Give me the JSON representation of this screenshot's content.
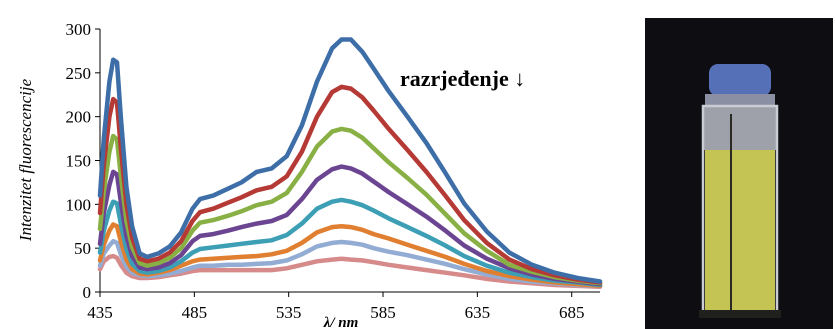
{
  "chart_data": {
    "type": "line",
    "title": "",
    "xlabel": "λ/ nm",
    "ylabel": "Intenzitet fluorescencije",
    "xlim": [
      435,
      700
    ],
    "ylim": [
      0,
      300
    ],
    "x_ticks": [
      435,
      485,
      535,
      585,
      635,
      685
    ],
    "y_ticks": [
      0,
      50,
      100,
      150,
      200,
      250,
      300
    ],
    "grid": false,
    "legend": "none",
    "annotation": "razrjeđenje ↓",
    "x": [
      435,
      437,
      440,
      442,
      444,
      446,
      449,
      452,
      456,
      460,
      466,
      472,
      478,
      484,
      488,
      495,
      503,
      510,
      518,
      526,
      534,
      542,
      550,
      558,
      563,
      568,
      574,
      580,
      588,
      598,
      608,
      618,
      628,
      640,
      652,
      664,
      676,
      688,
      700
    ],
    "series": [
      {
        "color": "#3d6ea8",
        "values": [
          110,
          175,
          240,
          265,
          262,
          200,
          120,
          75,
          44,
          40,
          44,
          52,
          68,
          95,
          106,
          110,
          118,
          125,
          137,
          141,
          155,
          190,
          240,
          278,
          288,
          288,
          274,
          255,
          229,
          200,
          170,
          136,
          101,
          69,
          45,
          31,
          22,
          16,
          12
        ]
      },
      {
        "color": "#b53a35",
        "values": [
          90,
          145,
          200,
          220,
          216,
          165,
          100,
          62,
          38,
          35,
          38,
          45,
          58,
          81,
          91,
          95,
          102,
          108,
          116,
          120,
          132,
          160,
          200,
          228,
          234,
          232,
          222,
          207,
          186,
          162,
          137,
          110,
          82,
          56,
          37,
          26,
          19,
          14,
          11
        ]
      },
      {
        "color": "#88b044",
        "values": [
          72,
          115,
          160,
          178,
          174,
          133,
          81,
          51,
          33,
          30,
          33,
          39,
          50,
          70,
          79,
          82,
          87,
          92,
          99,
          103,
          113,
          137,
          166,
          183,
          186,
          184,
          176,
          164,
          148,
          130,
          111,
          89,
          67,
          47,
          31,
          23,
          17,
          13,
          10
        ]
      },
      {
        "color": "#6b4592",
        "values": [
          55,
          90,
          122,
          137,
          134,
          103,
          64,
          41,
          28,
          26,
          28,
          33,
          42,
          58,
          64,
          66,
          70,
          74,
          78,
          81,
          88,
          106,
          128,
          140,
          143,
          141,
          135,
          126,
          114,
          100,
          86,
          70,
          53,
          38,
          27,
          20,
          15,
          12,
          9
        ]
      },
      {
        "color": "#3c9fb5",
        "values": [
          45,
          70,
          93,
          103,
          101,
          78,
          49,
          32,
          24,
          22,
          24,
          28,
          35,
          45,
          49,
          51,
          53,
          55,
          57,
          59,
          65,
          78,
          95,
          103,
          105,
          103,
          99,
          93,
          84,
          74,
          64,
          53,
          41,
          30,
          22,
          17,
          13,
          11,
          8
        ]
      },
      {
        "color": "#e07f30",
        "values": [
          36,
          54,
          70,
          77,
          75,
          58,
          37,
          26,
          21,
          20,
          22,
          25,
          30,
          35,
          37,
          38,
          39,
          40,
          41,
          43,
          47,
          56,
          68,
          74,
          75,
          74,
          71,
          66,
          61,
          54,
          47,
          40,
          32,
          24,
          18,
          14,
          11,
          9,
          7
        ]
      },
      {
        "color": "#93acd4",
        "values": [
          30,
          44,
          53,
          58,
          56,
          43,
          29,
          22,
          19,
          18,
          19,
          21,
          24,
          28,
          30,
          30,
          31,
          31,
          32,
          33,
          36,
          43,
          52,
          56,
          57,
          56,
          54,
          50,
          46,
          42,
          37,
          32,
          26,
          20,
          15,
          12,
          10,
          8,
          7
        ]
      },
      {
        "color": "#d68a8a",
        "values": [
          26,
          35,
          40,
          41,
          39,
          31,
          22,
          18,
          16,
          16,
          17,
          19,
          21,
          24,
          25,
          25,
          25,
          25,
          25,
          25,
          27,
          31,
          35,
          37,
          38,
          37,
          36,
          34,
          31,
          28,
          25,
          22,
          19,
          15,
          12,
          10,
          8,
          7,
          6
        ]
      }
    ]
  },
  "photo": {
    "background": "#0d0d12",
    "cap_color": "#5670b8",
    "liquid_color": "#cfcf5a"
  }
}
